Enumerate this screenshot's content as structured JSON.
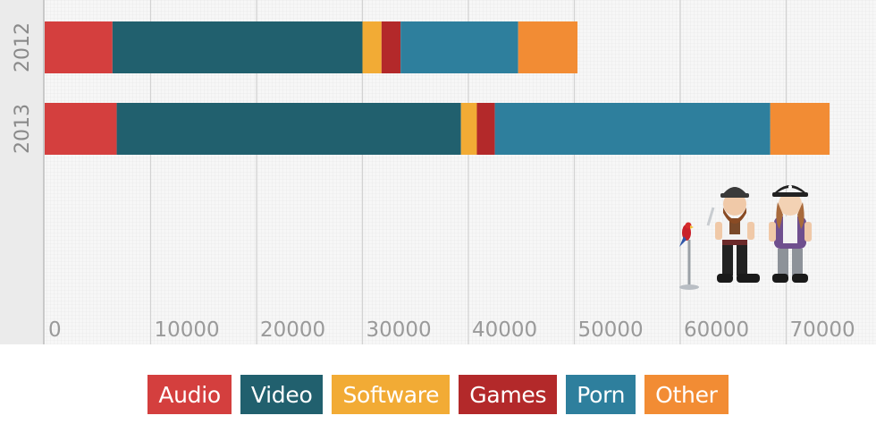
{
  "chart_data": {
    "type": "bar",
    "orientation": "horizontal",
    "stacked": true,
    "title": "",
    "xlabel": "",
    "ylabel": "",
    "categories": [
      "2012",
      "2013"
    ],
    "xlim": [
      0,
      77000
    ],
    "xticks": [
      0,
      10000,
      20000,
      30000,
      40000,
      50000,
      60000,
      70000
    ],
    "grid": true,
    "legend_position": "bottom",
    "series": [
      {
        "name": "Audio",
        "color": "#d43f3e",
        "values": [
          6400,
          6800
        ]
      },
      {
        "name": "Video",
        "color": "#21606e",
        "values": [
          23600,
          32500
        ]
      },
      {
        "name": "Software",
        "color": "#f2ab35",
        "values": [
          1800,
          1500
        ]
      },
      {
        "name": "Games",
        "color": "#b3292a",
        "values": [
          1800,
          1700
        ]
      },
      {
        "name": "Porn",
        "color": "#2e7f9d",
        "values": [
          11100,
          26000
        ]
      },
      {
        "name": "Other",
        "color": "#f28c34",
        "values": [
          5600,
          5600
        ]
      }
    ]
  },
  "illustration": {
    "icon": "pirates-with-parrot-icon"
  }
}
